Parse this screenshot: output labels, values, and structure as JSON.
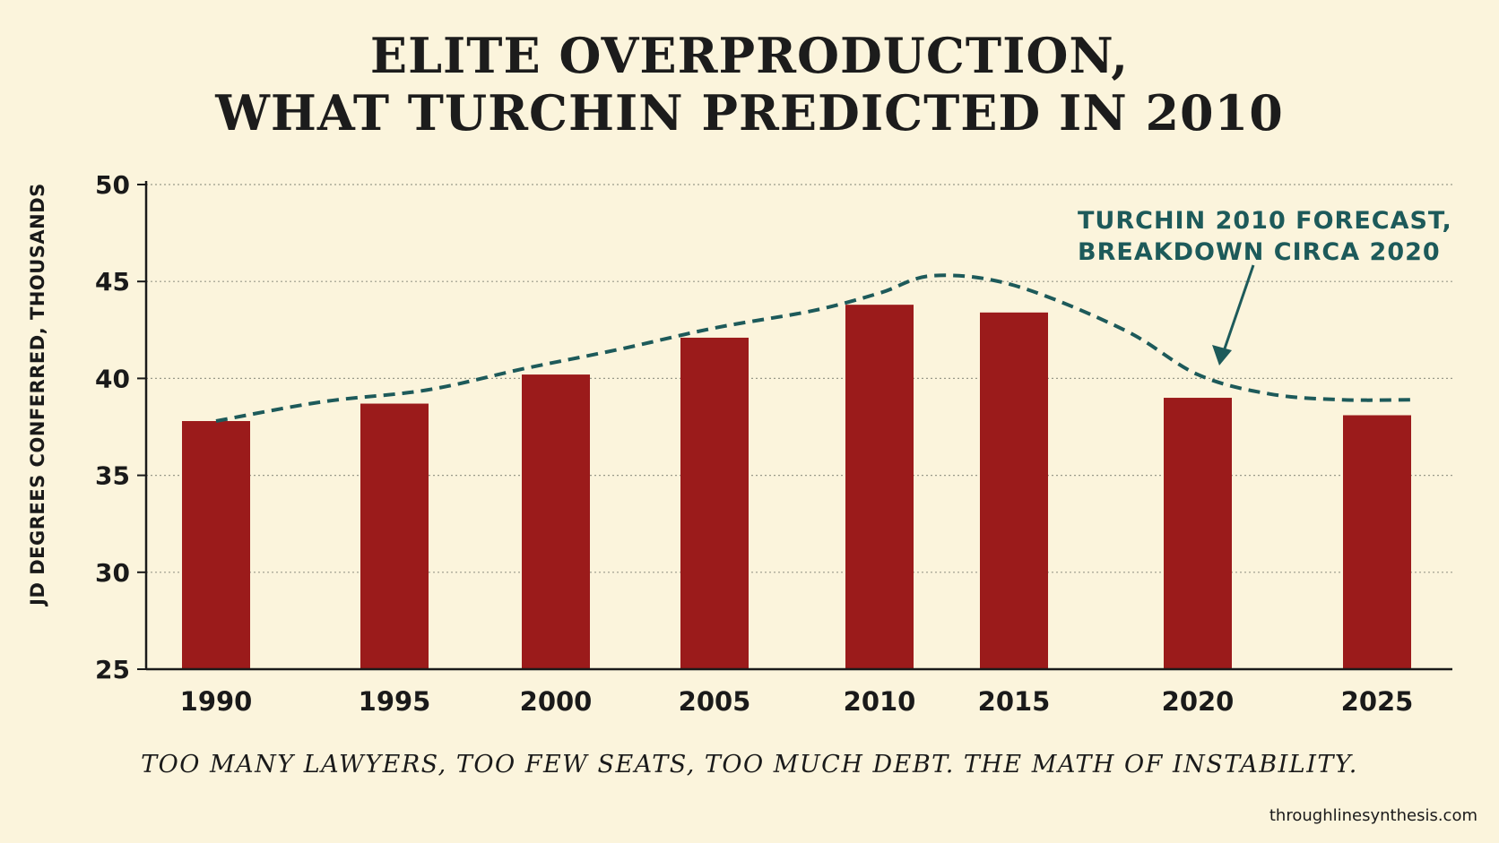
{
  "title_lines": [
    "ELITE OVERPRODUCTION,",
    "WHAT TURCHIN PREDICTED IN 2010"
  ],
  "subtitle": "TOO MANY LAWYERS, TOO FEW SEATS, TOO MUCH DEBT. THE MATH OF INSTABILITY.",
  "source": "throughlinesynthesis.com",
  "colors": {
    "background": "#fbf4dc",
    "bar": "#9b1b1b",
    "forecast": "#1d5a5a",
    "text": "#1a1a1a",
    "grid": "#9a9a8a"
  },
  "chart_data": {
    "type": "bar",
    "ylabel": "JD DEGREES CONFERRED, THOUSANDS",
    "xlabel": "",
    "ylim": [
      25,
      50
    ],
    "yticks": [
      25,
      30,
      35,
      40,
      45,
      50
    ],
    "grid": true,
    "categories": [
      "1990",
      "1995",
      "2000",
      "2005",
      "2010",
      "2015",
      "2020",
      "2025"
    ],
    "values": [
      37.8,
      38.7,
      40.2,
      42.1,
      43.8,
      43.4,
      39.0,
      38.1
    ],
    "forecast": {
      "style": "dashed-line",
      "annotation_lines": [
        "TURCHIN 2010 FORECAST,",
        "BREAKDOWN CIRCA 2020"
      ],
      "points": [
        {
          "x": 1990,
          "y": 37.8
        },
        {
          "x": 1993,
          "y": 38.8
        },
        {
          "x": 1996,
          "y": 39.4
        },
        {
          "x": 1999,
          "y": 40.5
        },
        {
          "x": 2002,
          "y": 41.5
        },
        {
          "x": 2005,
          "y": 42.6
        },
        {
          "x": 2008,
          "y": 43.5
        },
        {
          "x": 2010,
          "y": 44.4
        },
        {
          "x": 2012,
          "y": 45.3
        },
        {
          "x": 2015,
          "y": 44.8
        },
        {
          "x": 2018,
          "y": 42.5
        },
        {
          "x": 2020,
          "y": 40.2
        },
        {
          "x": 2022,
          "y": 39.2
        },
        {
          "x": 2024,
          "y": 38.9
        },
        {
          "x": 2026,
          "y": 38.9
        }
      ]
    }
  }
}
